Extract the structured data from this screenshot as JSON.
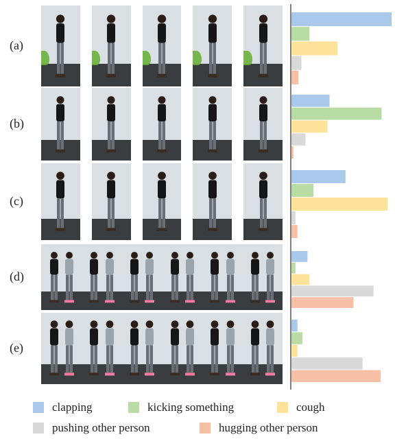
{
  "row_labels": [
    "(a)",
    "(b)",
    "(c)",
    "(d)",
    "(e)"
  ],
  "legend": {
    "clapping": "clapping",
    "kicking": "kicking something",
    "cough": "cough",
    "pushing": "pushing other person",
    "hugging": "hugging other person"
  },
  "colors": {
    "clapping": "#a9c8ea",
    "kicking": "#b9dca4",
    "cough": "#fde39a",
    "pushing": "#d9d9d9",
    "hugging": "#f7bfa3"
  },
  "chart_data": {
    "type": "bar",
    "orientation": "horizontal",
    "categories": [
      "clapping",
      "kicking something",
      "cough",
      "pushing other person",
      "hugging other person"
    ],
    "groups": [
      "(a)",
      "(b)",
      "(c)",
      "(d)",
      "(e)"
    ],
    "series": [
      {
        "name": "(a)",
        "values": [
          1.0,
          0.18,
          0.46,
          0.1,
          0.07
        ]
      },
      {
        "name": "(b)",
        "values": [
          0.38,
          0.9,
          0.36,
          0.14,
          0.02
        ]
      },
      {
        "name": "(c)",
        "values": [
          0.54,
          0.22,
          0.96,
          0.04,
          0.06
        ]
      },
      {
        "name": "(d)",
        "values": [
          0.16,
          0.04,
          0.18,
          0.82,
          0.62
        ]
      },
      {
        "name": "(e)",
        "values": [
          0.06,
          0.11,
          0.06,
          0.71,
          0.89
        ]
      }
    ],
    "xlim": [
      0,
      1
    ]
  },
  "frames_per_row": [
    5,
    5,
    5,
    6,
    6
  ]
}
